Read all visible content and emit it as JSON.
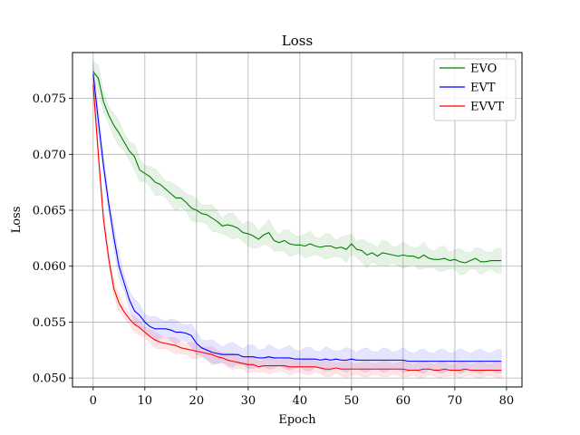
{
  "chart_data": {
    "type": "line",
    "title": "Loss",
    "xlabel": "Epoch",
    "ylabel": "Loss",
    "xlim": [
      -4,
      83
    ],
    "ylim": [
      0.0492,
      0.0791
    ],
    "xticks": [
      0,
      10,
      20,
      30,
      40,
      50,
      60,
      70,
      80
    ],
    "yticks": [
      0.05,
      0.055,
      0.06,
      0.065,
      0.07,
      0.075
    ],
    "ytick_labels": [
      "0.050",
      "0.055",
      "0.060",
      "0.065",
      "0.070",
      "0.075"
    ],
    "grid": true,
    "legend_position": "top-right",
    "series": [
      {
        "name": "EVO",
        "color": "#008000",
        "values": [
          0.0774,
          0.0768,
          0.0747,
          0.0735,
          0.0726,
          0.0719,
          0.0711,
          0.0703,
          0.0698,
          0.0686,
          0.0683,
          0.068,
          0.0675,
          0.0673,
          0.0669,
          0.0665,
          0.0661,
          0.0661,
          0.0657,
          0.0652,
          0.065,
          0.0647,
          0.0646,
          0.0643,
          0.064,
          0.0636,
          0.0637,
          0.0636,
          0.0634,
          0.063,
          0.0629,
          0.0627,
          0.0624,
          0.0628,
          0.063,
          0.0623,
          0.0621,
          0.0623,
          0.062,
          0.0619,
          0.0619,
          0.0618,
          0.062,
          0.0618,
          0.0617,
          0.0618,
          0.0618,
          0.0616,
          0.0617,
          0.0615,
          0.062,
          0.0615,
          0.0614,
          0.061,
          0.0612,
          0.0609,
          0.0612,
          0.0611,
          0.061,
          0.0609,
          0.061,
          0.0609,
          0.0609,
          0.0607,
          0.061,
          0.0607,
          0.0606,
          0.0606,
          0.0607,
          0.0605,
          0.0606,
          0.0604,
          0.0603,
          0.0605,
          0.0607,
          0.0604,
          0.0604,
          0.0605,
          0.0605,
          0.0605
        ],
        "band": 0.00095
      },
      {
        "name": "EVT",
        "color": "#0000ff",
        "values": [
          0.0772,
          0.073,
          0.069,
          0.0656,
          0.0626,
          0.06,
          0.0585,
          0.057,
          0.056,
          0.0556,
          0.055,
          0.0546,
          0.0544,
          0.0544,
          0.0544,
          0.0543,
          0.0541,
          0.0541,
          0.054,
          0.0538,
          0.0531,
          0.0527,
          0.0525,
          0.0523,
          0.0522,
          0.0521,
          0.0521,
          0.0521,
          0.0521,
          0.0519,
          0.0519,
          0.0519,
          0.0518,
          0.0518,
          0.0519,
          0.0518,
          0.0518,
          0.0518,
          0.0518,
          0.0517,
          0.0517,
          0.0517,
          0.0517,
          0.0517,
          0.0516,
          0.0517,
          0.0516,
          0.0517,
          0.0516,
          0.0516,
          0.0517,
          0.0516,
          0.0516,
          0.0516,
          0.0516,
          0.0516,
          0.0516,
          0.0516,
          0.0516,
          0.0516,
          0.0516,
          0.0515,
          0.0515,
          0.0515,
          0.0515,
          0.0515,
          0.0515,
          0.0515,
          0.0515,
          0.0515,
          0.0515,
          0.0515,
          0.0515,
          0.0515,
          0.0515,
          0.0515,
          0.0515,
          0.0515,
          0.0515,
          0.0515
        ],
        "band": 0.0009
      },
      {
        "name": "EVVT",
        "color": "#ff0000",
        "values": [
          0.0762,
          0.07,
          0.0642,
          0.0607,
          0.058,
          0.0567,
          0.0559,
          0.0553,
          0.0548,
          0.0545,
          0.0541,
          0.0537,
          0.0534,
          0.0532,
          0.0531,
          0.053,
          0.0529,
          0.0527,
          0.0526,
          0.0525,
          0.0524,
          0.0523,
          0.0522,
          0.0521,
          0.0519,
          0.0518,
          0.0516,
          0.0515,
          0.0514,
          0.0513,
          0.0512,
          0.0512,
          0.051,
          0.0511,
          0.0511,
          0.0511,
          0.0511,
          0.0511,
          0.051,
          0.051,
          0.051,
          0.051,
          0.051,
          0.051,
          0.0509,
          0.0508,
          0.0508,
          0.0509,
          0.0508,
          0.0508,
          0.0508,
          0.0508,
          0.0508,
          0.0508,
          0.0508,
          0.0508,
          0.0508,
          0.0508,
          0.0508,
          0.0508,
          0.0508,
          0.0507,
          0.0507,
          0.0507,
          0.0508,
          0.0508,
          0.0507,
          0.0507,
          0.0508,
          0.0507,
          0.0507,
          0.0507,
          0.0508,
          0.0507,
          0.0507,
          0.0507,
          0.0507,
          0.0507,
          0.0507,
          0.0507
        ],
        "band": 0.0006
      }
    ]
  }
}
